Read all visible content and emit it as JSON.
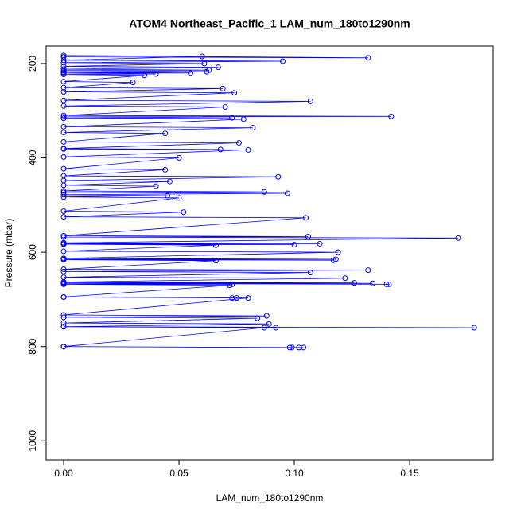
{
  "chart_data": {
    "type": "scatter",
    "title": "ATOM4 Northeast_Pacific_1 LAM_num_180to1290nm",
    "x_label": "LAM_num_180to1290nm",
    "y_label": "Pressure (mbar)",
    "color": "#0000ff",
    "xlim": [
      -0.0076,
      0.1862
    ],
    "ylim": [
      1040,
      163
    ],
    "xticks": [
      {
        "value": 0,
        "label": "0.00"
      },
      0.05,
      {
        "value": 0.1,
        "label": "0.10"
      },
      0.15
    ],
    "yticks": [
      200,
      400,
      600,
      800,
      1000
    ],
    "x": [
      0,
      0.132,
      0,
      0.06,
      0,
      0.095,
      0,
      0.061,
      0,
      0.067,
      0,
      0.063,
      0,
      0.062,
      0,
      0.055,
      0,
      0.04,
      0,
      0.035,
      0,
      0.03,
      0,
      0.069,
      0,
      0.074,
      0,
      0.107,
      0,
      0.07,
      0,
      0.142,
      0,
      0.073,
      0,
      0.078,
      0,
      0.082,
      0,
      0.044,
      0,
      0.076,
      0,
      0.068,
      0,
      0.08,
      0,
      0.05,
      0,
      0.044,
      0,
      0.093,
      0,
      0.046,
      0,
      0.04,
      0,
      0.087,
      0,
      0.097,
      0,
      0.045,
      0,
      0.05,
      0,
      0.052,
      0,
      0.105,
      0,
      0.106,
      0,
      0.171,
      0,
      0.111,
      0,
      0.1,
      0,
      0.066,
      0,
      0.119,
      0,
      0.118,
      0,
      0.117,
      0,
      0.066,
      0,
      0.132,
      0,
      0.107,
      0,
      0.122,
      0,
      0.126,
      0,
      0.134,
      0,
      0.14,
      0,
      0.141,
      0,
      0.073,
      0,
      0.072,
      0,
      0.073,
      0,
      0.075,
      0,
      0.08,
      0,
      0.088,
      0,
      0.084,
      0,
      0.089,
      0,
      0.178,
      0,
      0.092,
      0,
      0.087,
      0,
      0.098,
      0,
      0.099,
      0,
      0.102,
      0,
      0.104
    ],
    "values": [
      186,
      188,
      183,
      185,
      193,
      195,
      198,
      200,
      206,
      208,
      212,
      214,
      215,
      217,
      218,
      220,
      220,
      222,
      223,
      225,
      238,
      240,
      251,
      253,
      260,
      262,
      278,
      280,
      290,
      292,
      310,
      312,
      313,
      315,
      316,
      318,
      334,
      336,
      346,
      348,
      366,
      368,
      380,
      382,
      381,
      383,
      398,
      400,
      423,
      425,
      438,
      440,
      448,
      450,
      458,
      460,
      470,
      472,
      473,
      475,
      478,
      480,
      483,
      485,
      513,
      515,
      525,
      527,
      565,
      567,
      568,
      570,
      580,
      582,
      582,
      584,
      583,
      585,
      598,
      600,
      613,
      615,
      615,
      617,
      616,
      618,
      636,
      638,
      641,
      643,
      653,
      655,
      663,
      665,
      664,
      666,
      666,
      668,
      666,
      668,
      666,
      668,
      668,
      670,
      695,
      697,
      695,
      697,
      695,
      697,
      733,
      735,
      738,
      740,
      750,
      752,
      758,
      760,
      758,
      760,
      758,
      760,
      800,
      802,
      800,
      802,
      800,
      802,
      800,
      802
    ]
  }
}
